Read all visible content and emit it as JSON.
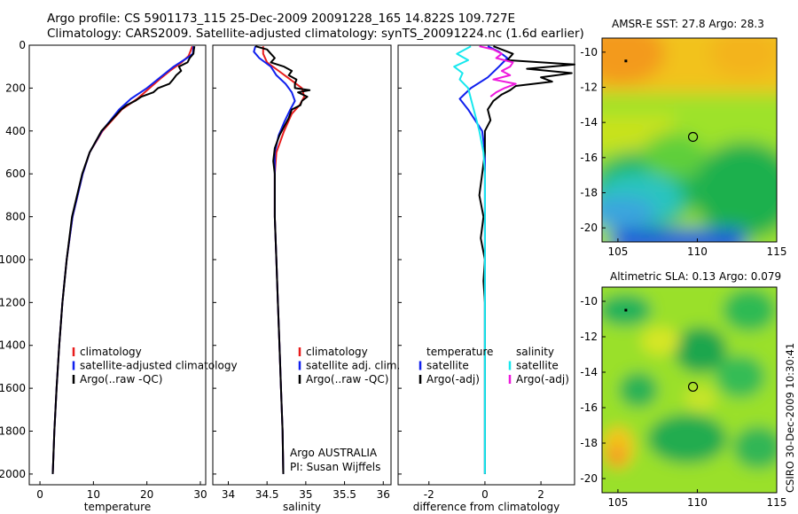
{
  "header": {
    "line1": "Argo profile: CS 5901173_115 25-Dec-2009 20091228_165 14.822S 109.727E",
    "line2": "Climatology: CARS2009. Satellite-adjusted climatology: synTS_20091224.nc (1.6d earlier)"
  },
  "stamp": "CSIRO 30-Dec-2009 10:30:41",
  "colors": {
    "clim": "#e81c1c",
    "sat": "#1020ee",
    "argo": "#000000",
    "sal_sat": "#18e8ee",
    "sal_argo": "#ee18dd"
  },
  "chart_data": [
    {
      "type": "line",
      "name": "temperature-profile",
      "xlabel": "temperature",
      "ylabel": "",
      "xlim": [
        -2,
        31
      ],
      "ylim": [
        2050,
        0
      ],
      "xticks": [
        0,
        10,
        20,
        30
      ],
      "yticks": [
        0,
        200,
        400,
        600,
        800,
        1000,
        1200,
        1400,
        1600,
        1800,
        2000
      ],
      "legend_title": "",
      "legend_position": "lower-center",
      "series": [
        {
          "name": "climatology",
          "color": "#e81c1c",
          "depth": [
            5,
            50,
            80,
            120,
            150,
            200,
            250,
            300,
            400,
            500,
            600,
            800,
            1000,
            1200,
            1400,
            1600,
            1800,
            2000
          ],
          "values": [
            28.5,
            27.8,
            26.5,
            24.3,
            22.8,
            20.5,
            18.2,
            15.3,
            11.7,
            9.3,
            8.0,
            6.1,
            5.0,
            4.2,
            3.6,
            3.1,
            2.7,
            2.4
          ]
        },
        {
          "name": "satellite-adjusted climatology",
          "color": "#1020ee",
          "depth": [
            5,
            40,
            60,
            100,
            150,
            200,
            250,
            300,
            400,
            500,
            600,
            800,
            1000,
            1200,
            1400,
            1600,
            1800,
            2000
          ],
          "values": [
            28.7,
            28.6,
            27.5,
            25.0,
            22.5,
            20.0,
            17.0,
            14.8,
            11.6,
            9.3,
            8.0,
            6.1,
            5.0,
            4.2,
            3.6,
            3.1,
            2.7,
            2.4
          ]
        },
        {
          "name": "Argo(..raw -QC)",
          "color": "#000000",
          "depth": [
            5,
            20,
            40,
            60,
            80,
            100,
            120,
            140,
            160,
            180,
            200,
            220,
            240,
            260,
            280,
            300,
            400,
            500,
            600,
            800,
            1000,
            1200,
            1400,
            1600,
            1800,
            2000
          ],
          "values": [
            28.9,
            28.8,
            28.7,
            28.0,
            27.6,
            26.0,
            26.4,
            25.5,
            24.9,
            24.2,
            22.1,
            21.2,
            19.0,
            17.8,
            16.2,
            15.2,
            11.5,
            9.3,
            7.9,
            6.0,
            5.0,
            4.2,
            3.6,
            3.1,
            2.7,
            2.4
          ]
        }
      ],
      "legend": [
        "climatology",
        "satellite-adjusted climatology",
        "Argo(..raw -QC)"
      ]
    },
    {
      "type": "line",
      "name": "salinity-profile",
      "xlabel": "salinity",
      "ylabel": "",
      "xlim": [
        33.8,
        36.1
      ],
      "ylim": [
        2050,
        0
      ],
      "xticks": [
        34,
        34.5,
        35,
        35.5,
        36
      ],
      "legend_position": "lower-center",
      "series": [
        {
          "name": "climatology",
          "color": "#e81c1c",
          "depth": [
            5,
            40,
            80,
            120,
            160,
            200,
            240,
            280,
            320,
            400,
            500,
            600,
            800,
            1000,
            1200,
            1400,
            1600,
            1800,
            2000
          ],
          "values": [
            34.45,
            34.45,
            34.5,
            34.65,
            34.8,
            34.95,
            34.98,
            34.92,
            34.82,
            34.72,
            34.62,
            34.6,
            34.6,
            34.62,
            34.64,
            34.66,
            34.68,
            34.7,
            34.71
          ]
        },
        {
          "name": "satellite adj. clim.",
          "color": "#1020ee",
          "depth": [
            5,
            30,
            60,
            100,
            140,
            180,
            220,
            260,
            300,
            360,
            420,
            500,
            600,
            800,
            1000,
            1200,
            1400,
            1600,
            1800,
            2000
          ],
          "values": [
            34.35,
            34.33,
            34.4,
            34.55,
            34.62,
            34.74,
            34.82,
            34.86,
            34.8,
            34.72,
            34.65,
            34.6,
            34.6,
            34.6,
            34.62,
            34.64,
            34.66,
            34.68,
            34.7,
            34.71
          ]
        },
        {
          "name": "Argo(..raw -QC)",
          "color": "#000000",
          "depth": [
            5,
            20,
            40,
            60,
            80,
            100,
            120,
            140,
            160,
            180,
            200,
            210,
            220,
            240,
            260,
            280,
            300,
            340,
            380,
            420,
            480,
            540,
            600,
            800,
            1000,
            1200,
            1400,
            1600,
            1800,
            2000
          ],
          "values": [
            34.35,
            34.5,
            34.55,
            34.6,
            34.55,
            34.72,
            34.82,
            34.78,
            34.88,
            34.86,
            34.86,
            35.05,
            34.9,
            35.02,
            34.95,
            34.93,
            34.82,
            34.78,
            34.72,
            34.66,
            34.6,
            34.58,
            34.6,
            34.6,
            34.62,
            34.64,
            34.66,
            34.68,
            34.7,
            34.71
          ]
        }
      ],
      "legend": [
        "climatology",
        "satellite adj. clim.",
        "Argo(..raw -QC)"
      ],
      "annotations": [
        "Argo AUSTRALIA",
        "PI: Susan Wijffels"
      ]
    },
    {
      "type": "line",
      "name": "difference-profile",
      "xlabel": "difference from climatology",
      "ylabel": "",
      "xlim": [
        -3.1,
        3.2
      ],
      "ylim": [
        2050,
        0
      ],
      "xticks": [
        -2,
        0,
        2
      ],
      "legend_position": "lower-center",
      "series": [
        {
          "name": "temperature satellite",
          "color": "#1020ee",
          "depth": [
            5,
            30,
            60,
            100,
            150,
            200,
            250,
            300,
            400,
            500,
            600,
            800,
            1000,
            1400,
            2000
          ],
          "values": [
            0.1,
            0.5,
            0.8,
            0.5,
            0.1,
            -0.5,
            -0.9,
            -0.6,
            -0.1,
            0.0,
            0.0,
            0.0,
            0.0,
            0.0,
            0.0
          ]
        },
        {
          "name": "temperature Argo(-adj)",
          "color": "#000000",
          "depth": [
            5,
            40,
            70,
            90,
            110,
            130,
            150,
            170,
            190,
            210,
            230,
            260,
            300,
            350,
            400,
            500,
            600,
            700,
            800,
            900,
            1000,
            1100,
            1200,
            1400,
            1600,
            1800,
            2000
          ],
          "values": [
            0.3,
            1.0,
            0.8,
            3.2,
            1.5,
            3.1,
            2.0,
            2.4,
            1.1,
            0.9,
            0.6,
            0.3,
            0.1,
            0.2,
            0.0,
            0.0,
            -0.1,
            -0.2,
            -0.05,
            -0.15,
            0.0,
            -0.05,
            0.0,
            0.0,
            0.0,
            0.0,
            0.0
          ]
        },
        {
          "name": "salinity satellite",
          "color": "#18e8ee",
          "depth": [
            5,
            40,
            70,
            100,
            130,
            160,
            200,
            250,
            300,
            400,
            500,
            600,
            800,
            1000,
            1400,
            2000
          ],
          "values": [
            -0.5,
            -1.0,
            -0.6,
            -1.1,
            -0.8,
            -0.9,
            -0.6,
            -0.5,
            -0.4,
            -0.2,
            -0.05,
            0.0,
            0.0,
            0.0,
            0.0,
            0.0
          ]
        },
        {
          "name": "salinity Argo(-adj)",
          "color": "#ee18dd",
          "depth": [
            5,
            20,
            40,
            60,
            80,
            100,
            120,
            140,
            160,
            180,
            200,
            220,
            240
          ],
          "values": [
            -0.2,
            0.3,
            0.6,
            0.4,
            1.0,
            0.9,
            0.6,
            0.9,
            0.3,
            1.1,
            0.7,
            0.4,
            0.2
          ]
        }
      ],
      "legend_groups": [
        {
          "title": "temperature",
          "items": [
            "satellite",
            "Argo(-adj)"
          ]
        },
        {
          "title": "salinity",
          "items": [
            "satellite",
            "Argo(-adj)"
          ]
        }
      ]
    },
    {
      "type": "heatmap",
      "name": "amsre-sst-map",
      "title": "AMSR-E SST: 27.8 Argo: 28.3",
      "xlim": [
        104,
        115
      ],
      "ylim": [
        -20.8,
        -9.2
      ],
      "xticks": [
        105,
        110,
        115
      ],
      "yticks": [
        -10,
        -12,
        -14,
        -16,
        -18,
        -20
      ],
      "marker": {
        "lon": 109.727,
        "lat": -14.822
      }
    },
    {
      "type": "heatmap",
      "name": "altimetric-sla-map",
      "title": "Altimetric SLA: 0.13 Argo: 0.079",
      "xlim": [
        104,
        115
      ],
      "ylim": [
        -20.8,
        -9.2
      ],
      "xticks": [
        105,
        110,
        115
      ],
      "yticks": [
        -10,
        -12,
        -14,
        -16,
        -18,
        -20
      ],
      "marker": {
        "lon": 109.727,
        "lat": -14.822
      }
    }
  ]
}
